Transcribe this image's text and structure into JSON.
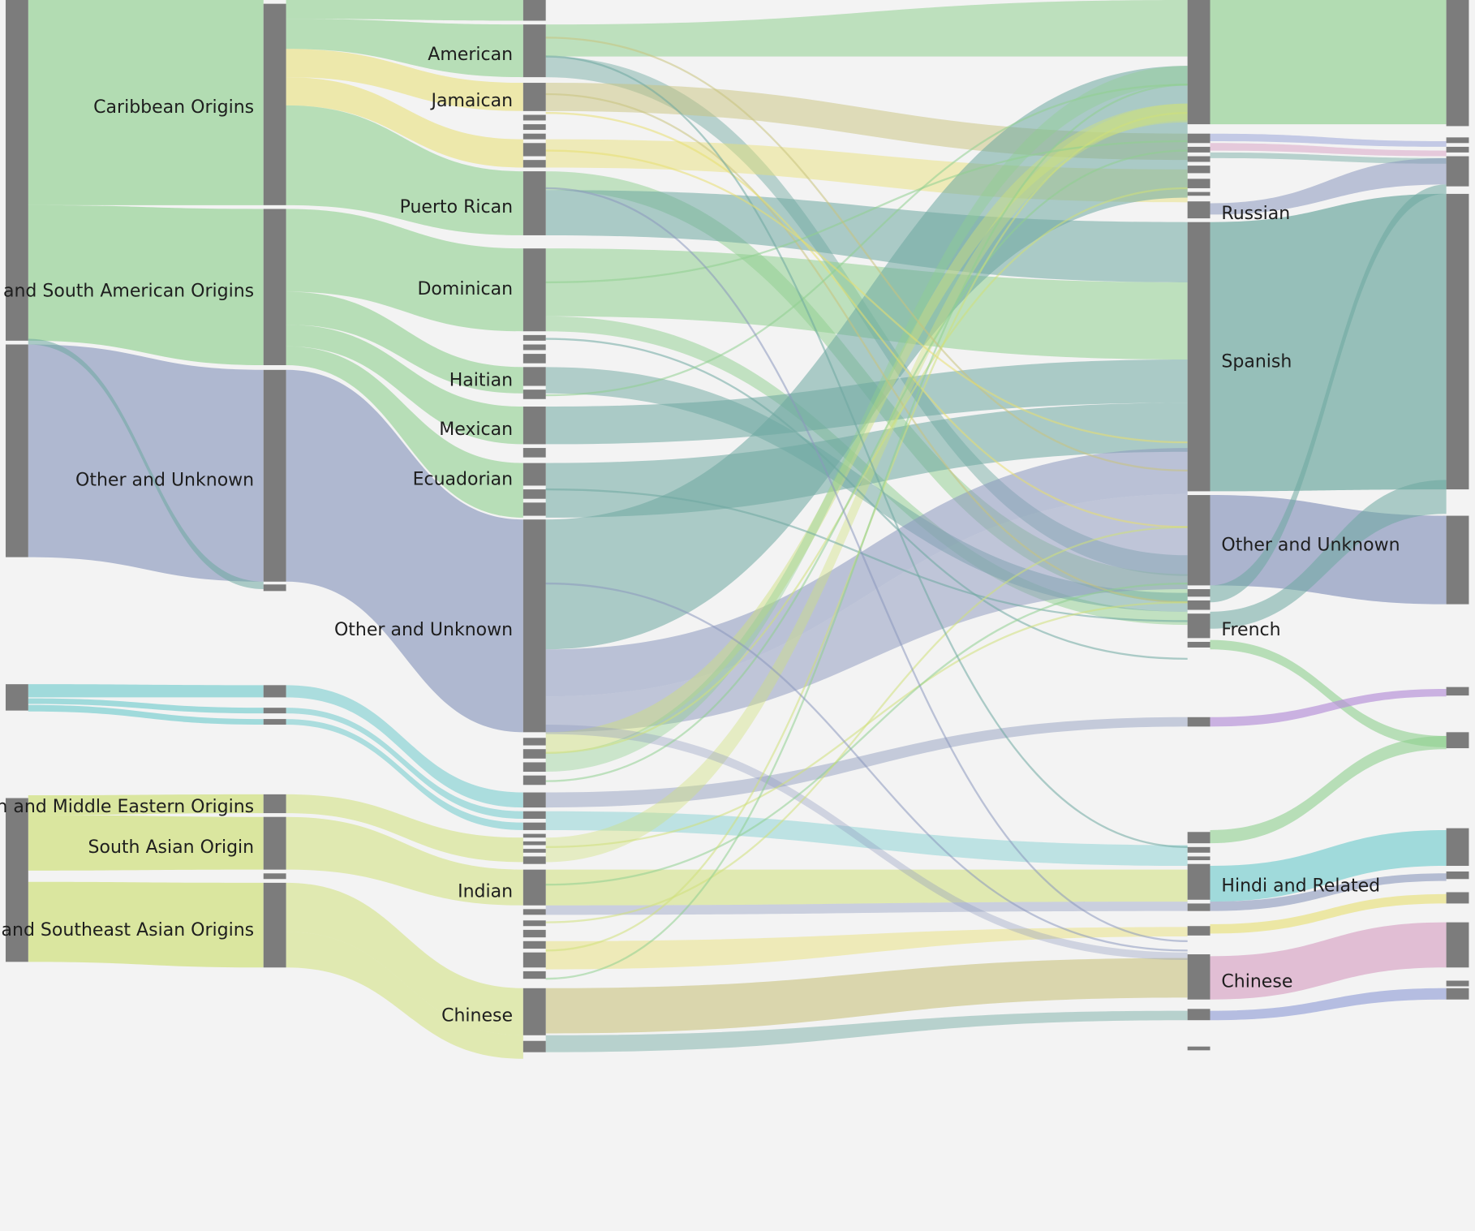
{
  "diagram": {
    "type": "sankey",
    "background": "#f3f3f3",
    "node_color": "#7c7c7c",
    "colors": {
      "green": "#8fd08f",
      "slate": "#8b98bd",
      "teal": "#6ea8a0",
      "cyan": "#7ccfd0",
      "yellow": "#e8df70",
      "lime": "#cfe07a",
      "olive": "#c9c37e",
      "purple": "#b894d9",
      "pink": "#d9a6c6",
      "blue": "#9aa5d9"
    },
    "labels": {
      "region_caribbean": "Caribbean Origins",
      "region_central_south": "Central and South American Origins",
      "region_other": "Other and Unknown",
      "region_west_asian": "West Asian and Middle Eastern Origins",
      "region_south_asian": "South Asian Origin",
      "region_east_asian": "East and Southeast Asian Origins",
      "origin_american": "American",
      "origin_jamaican": "Jamaican",
      "origin_puerto_rican": "Puerto Rican",
      "origin_dominican": "Dominican",
      "origin_haitian": "Haitian",
      "origin_mexican": "Mexican",
      "origin_ecuadorian": "Ecuadorian",
      "origin_other": "Other and Unknown",
      "origin_indian": "Indian",
      "origin_chinese": "Chinese",
      "lang_russian": "Russian",
      "lang_spanish": "Spanish",
      "lang_other": "Other and Unknown",
      "lang_french": "French",
      "lang_hindi": "Hindi and Related",
      "lang_chinese": "Chinese"
    }
  }
}
